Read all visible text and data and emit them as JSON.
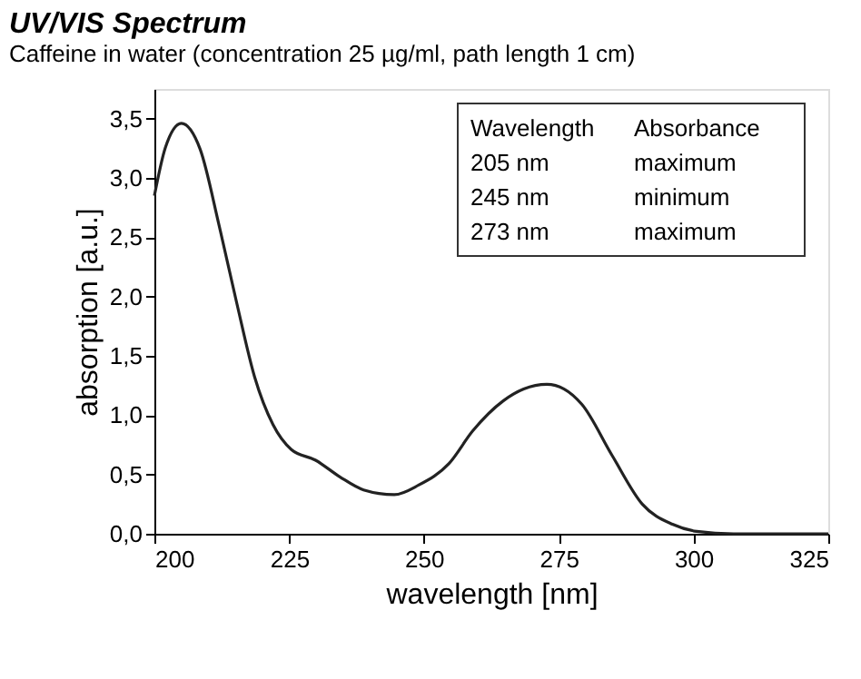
{
  "chart_data": {
    "type": "line",
    "title": "UV/VIS Spectrum",
    "subtitle": "Caffeine in water (concentration 25 µg/ml, path length 1 cm)",
    "xlabel": "wavelength [nm]",
    "ylabel": "absorption [a.u.]",
    "x": [
      200,
      202,
      205,
      208.5,
      212,
      215.3,
      218.6,
      222,
      225.4,
      229.9,
      234.4,
      238.8,
      244.5,
      249,
      254.6,
      259.1,
      264.7,
      268.5,
      272.8,
      276,
      279.3,
      284.9,
      290.5,
      296.1,
      300.6,
      307.4,
      315,
      325
    ],
    "series": [
      {
        "color": "#222222",
        "values": [
          2.85,
          3.25,
          3.46,
          3.24,
          2.6,
          1.94,
          1.32,
          0.92,
          0.71,
          0.62,
          0.48,
          0.37,
          0.33,
          0.41,
          0.59,
          0.87,
          1.12,
          1.22,
          1.26,
          1.22,
          1.09,
          0.66,
          0.25,
          0.08,
          0.02,
          0.0,
          0.0,
          0.0
        ]
      }
    ],
    "xlim": [
      200,
      325
    ],
    "xticks": [
      200,
      225,
      250,
      275,
      300,
      325
    ],
    "ylim": [
      0,
      3.75
    ],
    "yticks": [
      {
        "value": 0,
        "label": "0,0"
      },
      {
        "value": 0.5,
        "label": "0,5"
      },
      {
        "value": 1,
        "label": "1,0"
      },
      {
        "value": 1.5,
        "label": "1,5"
      },
      {
        "value": 2,
        "label": "2,0"
      },
      {
        "value": 2.5,
        "label": "2,5"
      },
      {
        "value": 3,
        "label": "3,0"
      },
      {
        "value": 3.5,
        "label": "3,5"
      }
    ],
    "annotations": [
      "Wavelength",
      "Absorbance",
      "205 nm",
      "maximum",
      "245 nm",
      "minimum",
      "273 nm",
      "maximum"
    ],
    "grid": false,
    "marker": "none",
    "line_style": "solid"
  }
}
